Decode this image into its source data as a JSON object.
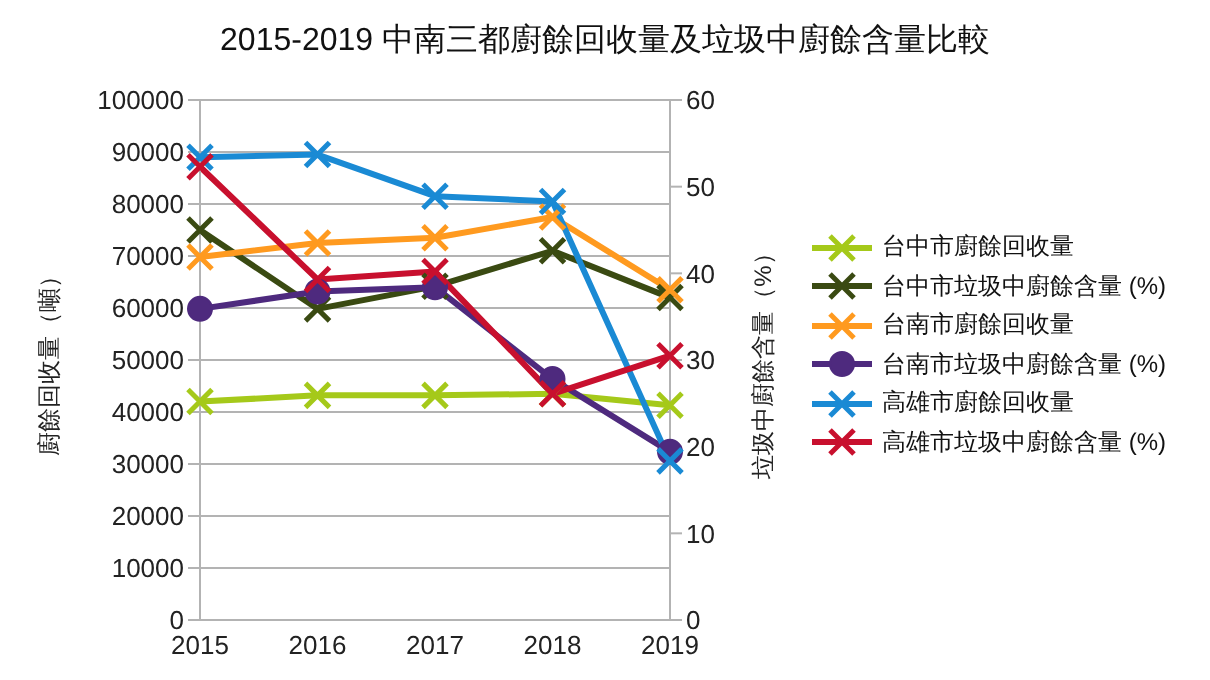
{
  "chart_data": {
    "type": "line",
    "title": "2015-2019 中南三都廚餘回收量及垃圾中廚餘含量比較",
    "categories": [
      "2015",
      "2016",
      "2017",
      "2018",
      "2019"
    ],
    "ylabel": "廚餘回收量（噸）",
    "y2label": "垃圾中廚餘含量（%）",
    "ylim": [
      0,
      100000
    ],
    "yticks": [
      0,
      10000,
      20000,
      30000,
      40000,
      50000,
      60000,
      70000,
      80000,
      90000,
      100000
    ],
    "y2lim": [
      0,
      60
    ],
    "y2ticks": [
      0,
      10,
      20,
      30,
      40,
      50,
      60
    ],
    "grid": "y",
    "legend": "right",
    "line_style": "solid",
    "series": [
      {
        "name": "台中市廚餘回收量",
        "color": "#a5c91a",
        "marker": "cross",
        "values": [
          42000,
          43200,
          43200,
          43500,
          41300
        ]
      },
      {
        "name": "台中市垃圾中廚餘含量 (%)",
        "color": "#3a4a12",
        "marker": "cross",
        "axis": "y2",
        "values": [
          45.0,
          35.9,
          38.5,
          42.6,
          37.2
        ]
      },
      {
        "name": "台南市廚餘回收量",
        "color": "#ff9a1f",
        "marker": "cross",
        "values": [
          69800,
          72500,
          73500,
          77500,
          63500
        ]
      },
      {
        "name": "台南市垃圾中廚餘含量 (%)",
        "color": "#4e2a7e",
        "marker": "circle",
        "axis": "y2",
        "values": [
          35.9,
          37.9,
          38.4,
          27.8,
          19.4
        ]
      },
      {
        "name": "高雄市廚餘回收量",
        "color": "#1a8ad4",
        "marker": "cross",
        "values": [
          89000,
          89500,
          81500,
          80500,
          30600
        ]
      },
      {
        "name": "高雄市垃圾中廚餘含量 (%)",
        "color": "#c8102e",
        "marker": "cross",
        "axis": "y2",
        "values": [
          52.3,
          39.3,
          40.2,
          26.1,
          30.5
        ]
      }
    ]
  }
}
